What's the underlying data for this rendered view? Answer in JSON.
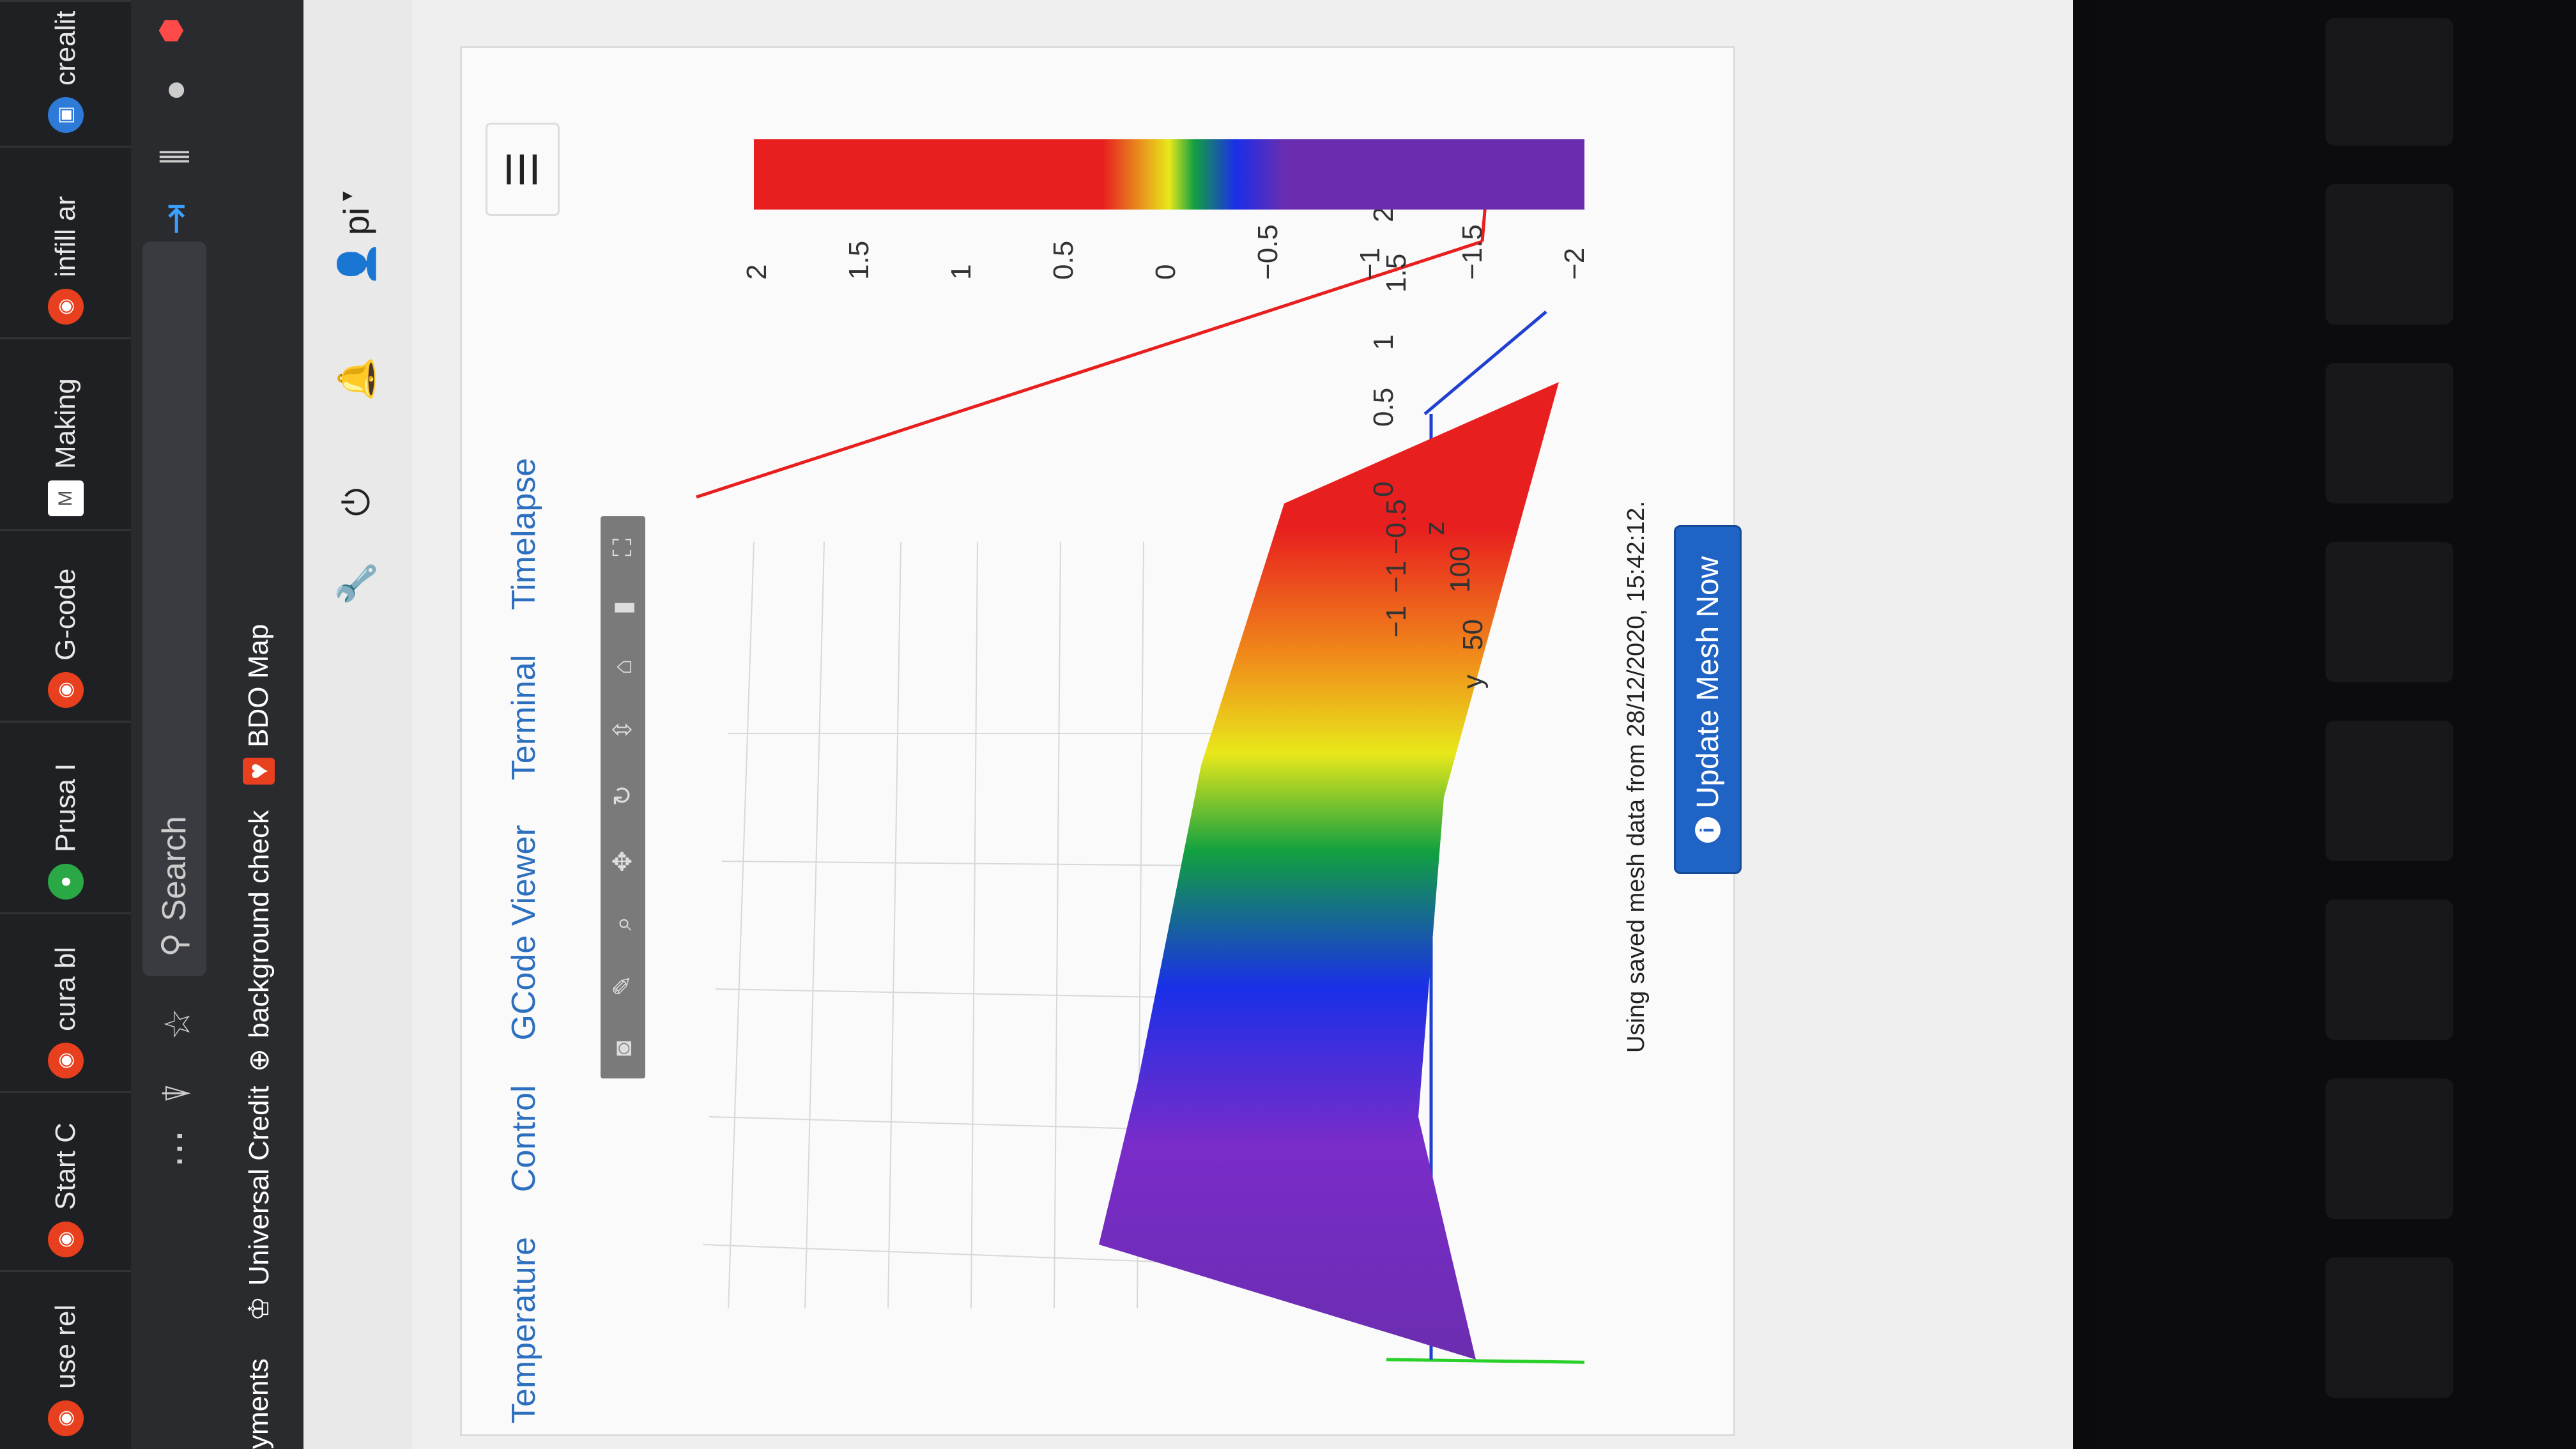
{
  "browser": {
    "tabs": [
      {
        "label": "use rel",
        "icon": "octoprint-icon"
      },
      {
        "label": "Start C",
        "icon": "octoprint-icon"
      },
      {
        "label": "cura bl",
        "icon": "octoprint-icon"
      },
      {
        "label": "Prusa I",
        "icon": "leaf-icon"
      },
      {
        "label": "G-code",
        "icon": "octoprint-icon"
      },
      {
        "label": "Making",
        "icon": "gmail-icon"
      },
      {
        "label": "infill ar",
        "icon": "octoprint-icon"
      },
      {
        "label": "crealit",
        "icon": "bookmark-icon"
      }
    ],
    "search_label": "Search",
    "bookmarks": [
      {
        "label": "yments"
      },
      {
        "label": "Universal Credit"
      },
      {
        "label": "background check"
      },
      {
        "label": "BDO Map"
      }
    ]
  },
  "app": {
    "user": "pi",
    "tabs": [
      "Temperature",
      "Control",
      "GCode Viewer",
      "Terminal",
      "Timelapse"
    ],
    "status_text": "Using saved mesh data from 28/12/2020, 15:42:12.",
    "update_button": "Update Mesh Now"
  },
  "chart_data": {
    "type": "surface",
    "z_ticks": [
      "2",
      "1.5",
      "1",
      "0.5",
      "0",
      "−0.5",
      "−1",
      "−1"
    ],
    "y_ticks": [
      "100",
      "50"
    ],
    "axis_labels": {
      "z": "z",
      "y": "y"
    },
    "colorbar": {
      "ticks": [
        "2",
        "1.5",
        "1",
        "0.5",
        "0",
        "−0.5",
        "−1",
        "−1.5",
        "−2"
      ],
      "min": -2,
      "max": 2
    },
    "surface_range": [
      -1.1,
      1.4
    ],
    "colors": {
      "high": "#e81f1f",
      "mid": "#1a2fe8",
      "low": "#6b2db0"
    }
  }
}
